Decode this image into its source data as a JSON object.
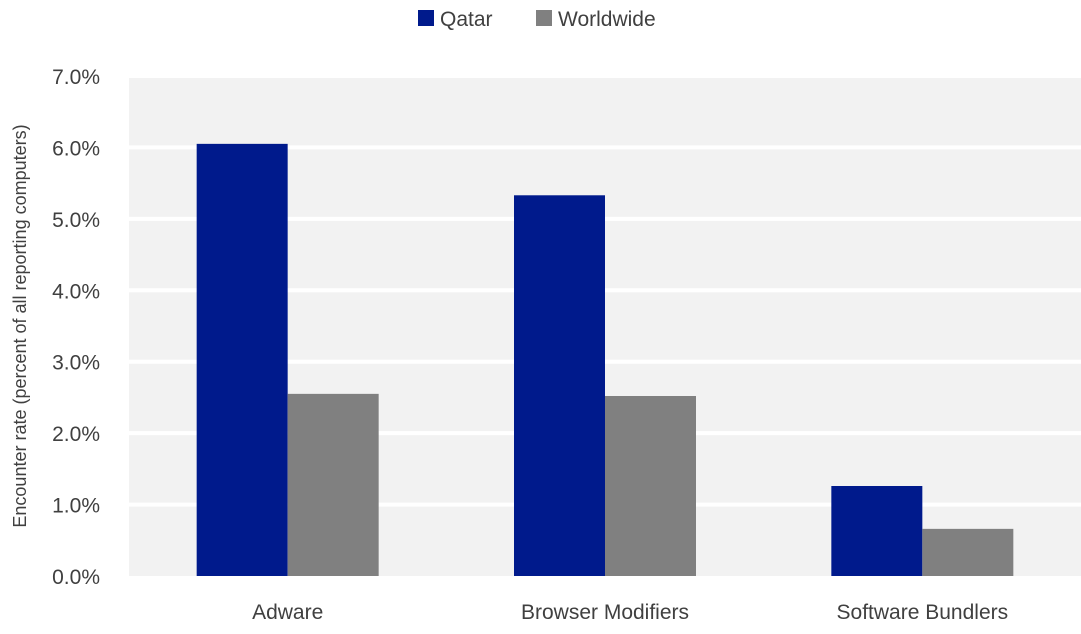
{
  "chart_data": {
    "type": "bar",
    "categories": [
      "Adware",
      "Browser Modifiers",
      "Software Bundlers"
    ],
    "series": [
      {
        "name": "Qatar",
        "color": "#001A8C",
        "values": [
          6.05,
          5.33,
          1.26
        ]
      },
      {
        "name": "Worldwide",
        "color": "#808080",
        "values": [
          2.55,
          2.52,
          0.66
        ]
      }
    ],
    "ylabel": "Encounter rate (percent of all reporting computers)",
    "xlabel": "",
    "ylim": [
      0,
      7
    ],
    "yticks": [
      "0.0%",
      "1.0%",
      "2.0%",
      "3.0%",
      "4.0%",
      "5.0%",
      "6.0%",
      "7.0%"
    ],
    "grid": true,
    "plot_background": "#F2F2F2",
    "legend_position": "top"
  }
}
